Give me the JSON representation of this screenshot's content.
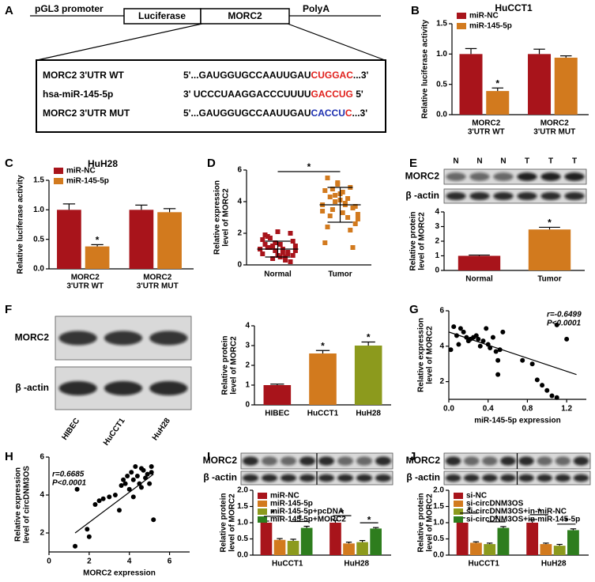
{
  "diagram": {
    "label": "A",
    "construct": [
      "pGL3 promoter",
      "Luciferase",
      "MORC2",
      "PolyA"
    ],
    "rows": [
      {
        "name": "MORC2 3'UTR WT",
        "segments": [
          {
            "text": "5'...GAUGGUGCCAAUUGAU",
            "color": "#000000"
          },
          {
            "text": "CUGGAC",
            "color": "#e0201c"
          },
          {
            "text": "...3'",
            "color": "#000000"
          }
        ]
      },
      {
        "name": "hsa-miR-145-5p",
        "segments": [
          {
            "text": "3' UCCCUAAGGACCCUUUU",
            "color": "#000000"
          },
          {
            "text": "GACCUG",
            "color": "#e0201c"
          },
          {
            "text": " 5'",
            "color": "#000000"
          }
        ]
      },
      {
        "name": "MORC2 3'UTR MUT",
        "segments": [
          {
            "text": "5'...GAUGGUGCCAAUUGAU",
            "color": "#000000"
          },
          {
            "text": "CACCU",
            "color": "#1c2fb0"
          },
          {
            "text": "C",
            "color": "#e0201c"
          },
          {
            "text": "...3'",
            "color": "#000000"
          }
        ]
      }
    ]
  },
  "blots": [
    {
      "label": "E",
      "rows": [
        "MORC2",
        "β -actin"
      ],
      "lanes": [
        "N",
        "N",
        "N",
        "T",
        "T",
        "T"
      ]
    },
    {
      "label": "F",
      "rows": [
        "MORC2",
        "β -actin"
      ],
      "lanes": [
        "HIBEC",
        "HuCCT1",
        "HuH28"
      ]
    },
    {
      "label": "I",
      "rows": [
        "MORC2",
        "β -actin"
      ]
    },
    {
      "label": "J",
      "rows": [
        "MORC2",
        "β -actin"
      ]
    }
  ],
  "chart_data": [
    {
      "type": "bar",
      "label": "B",
      "title": "HuCCT1",
      "ylabel": "Relative luciferase activity",
      "categories": [
        "MORC2 3'UTR WT",
        "MORC2 3'UTR MUT"
      ],
      "series": [
        {
          "name": "miR-NC",
          "color": "#a8141b",
          "values": [
            1.0,
            1.0
          ],
          "errors": [
            0.09,
            0.08
          ]
        },
        {
          "name": "miR-145-5p",
          "color": "#d27a1e",
          "values": [
            0.39,
            0.94
          ],
          "errors": [
            0.05,
            0.03
          ]
        }
      ],
      "ylim": [
        0,
        1.5
      ],
      "yticks": [
        {
          "value": 0,
          "label": "0.0"
        },
        0.5,
        {
          "value": 1,
          "label": "1.0"
        },
        1.5
      ],
      "annotations": [
        {
          "text": "*",
          "category": "MORC2 3'UTR WT",
          "series": "miR-145-5p"
        }
      ]
    },
    {
      "type": "bar",
      "label": "C",
      "title": "HuH28",
      "ylabel": "Relative luciferase activity",
      "categories": [
        "MORC2 3'UTR WT",
        "MORC2 3'UTR MUT"
      ],
      "series": [
        {
          "name": "miR-NC",
          "color": "#a8141b",
          "values": [
            1.0,
            1.0
          ],
          "errors": [
            0.1,
            0.08
          ]
        },
        {
          "name": "miR-145-5p",
          "color": "#d27a1e",
          "values": [
            0.38,
            0.96
          ],
          "errors": [
            0.03,
            0.06
          ]
        }
      ],
      "ylim": [
        0,
        1.5
      ],
      "yticks": [
        {
          "value": 0,
          "label": "0.0"
        },
        0.5,
        {
          "value": 1,
          "label": "1.0"
        },
        1.5
      ],
      "annotations": [
        {
          "text": "*",
          "category": "MORC2 3'UTR WT",
          "series": "miR-145-5p"
        }
      ]
    },
    {
      "type": "dot",
      "label": "D",
      "ylabel": "Relative expression level of MORC2",
      "categories": [
        "Normal",
        "Tumor"
      ],
      "colors": [
        "#a8141b",
        "#d27a1e"
      ],
      "groups": [
        [
          1.0,
          0.6,
          1.2,
          0.9,
          1.5,
          0.4,
          2.0,
          1.1,
          0.7,
          1.8,
          0.3,
          1.3,
          0.8,
          1.6,
          0.5,
          1.0,
          2.1,
          0.9,
          1.4,
          0.6,
          1.2,
          0.2,
          1.7,
          0.8,
          1.1,
          0.5,
          1.9,
          1.0,
          0.7,
          1.3
        ],
        [
          3.8,
          4.5,
          3.2,
          5.1,
          2.6,
          4.0,
          3.6,
          4.8,
          2.2,
          4.3,
          3.0,
          5.5,
          3.9,
          1.4,
          4.6,
          3.4,
          4.1,
          2.9,
          5.2,
          3.7,
          4.4,
          1.1,
          3.5,
          4.9,
          3.1,
          4.2,
          2.4,
          3.8,
          4.7,
          3.3
        ]
      ],
      "means": [
        1.0,
        3.8
      ],
      "sds": [
        0.5,
        1.1
      ],
      "ylim": [
        0,
        6
      ],
      "yticks": [
        0,
        2,
        4,
        6
      ],
      "annotations": [
        {
          "text": "*",
          "between": [
            "Normal",
            "Tumor"
          ]
        }
      ]
    },
    {
      "type": "bar",
      "label": "E",
      "ylabel": "Relative protein level of MORC2",
      "categories": [
        "Normal",
        "Tumor"
      ],
      "values": [
        1.0,
        2.8
      ],
      "errors": [
        0.05,
        0.15
      ],
      "colors": [
        "#a8141b",
        "#d27a1e"
      ],
      "ylim": [
        0,
        4
      ],
      "yticks": [
        0,
        1,
        2,
        3,
        4
      ],
      "annotations": [
        {
          "text": "*",
          "category": "Tumor"
        }
      ]
    },
    {
      "type": "bar",
      "label": "F",
      "ylabel": "Relative protein level of MORC2",
      "categories": [
        "HIBEC",
        "HuCCT1",
        "HuH28"
      ],
      "values": [
        1.0,
        2.6,
        3.0
      ],
      "errors": [
        0.05,
        0.15,
        0.18
      ],
      "colors": [
        "#a8141b",
        "#d27a1e",
        "#8c9a1d"
      ],
      "ylim": [
        0,
        4
      ],
      "yticks": [
        0,
        1,
        2,
        3,
        4
      ],
      "annotations": [
        {
          "text": "*",
          "category": "HuCCT1"
        },
        {
          "text": "*",
          "category": "HuH28"
        }
      ]
    },
    {
      "type": "scatter",
      "label": "G",
      "xlabel": "miR-145-5p expression",
      "ylabel": "Relative expression level of MORC2",
      "annotation_lines": [
        "r=-0.6499",
        "P<0.0001"
      ],
      "x": [
        0.02,
        0.05,
        0.08,
        0.1,
        0.12,
        0.15,
        0.18,
        0.2,
        0.22,
        0.25,
        0.28,
        0.3,
        0.32,
        0.35,
        0.38,
        0.4,
        0.42,
        0.45,
        0.48,
        0.5,
        0.5,
        0.52,
        0.55,
        0.75,
        0.85,
        0.9,
        0.95,
        1.0,
        1.05,
        1.1,
        1.2,
        1.1
      ],
      "y": [
        3.8,
        5.1,
        4.6,
        4.1,
        5.0,
        4.8,
        4.5,
        4.3,
        4.4,
        4.5,
        4.6,
        4.4,
        4.0,
        4.3,
        5.0,
        4.1,
        3.9,
        4.5,
        3.7,
        3.2,
        2.4,
        3.8,
        4.8,
        3.2,
        3.0,
        2.1,
        1.8,
        1.5,
        1.2,
        5.2,
        4.4,
        1.1
      ],
      "fit_line": {
        "x": [
          0,
          1.3
        ],
        "y": [
          4.8,
          2.4
        ],
        "color": "#e0201c"
      },
      "xlim": [
        0,
        1.4
      ],
      "xticks": [
        {
          "value": 0,
          "label": "0.0"
        },
        0.4,
        0.8,
        1.2
      ],
      "ylim": [
        1,
        6
      ],
      "yticks": [
        2,
        4,
        6
      ]
    },
    {
      "type": "scatter",
      "label": "H",
      "xlabel": "MORC2 expression",
      "ylabel": "Relative expression level of circDNM3OS",
      "annotation_lines": [
        "r=0.6685",
        "P<0.0001"
      ],
      "x": [
        1.3,
        1.4,
        1.9,
        2.0,
        2.3,
        2.5,
        2.7,
        3.0,
        3.3,
        3.5,
        3.7,
        3.8,
        3.9,
        4.0,
        4.1,
        4.2,
        4.3,
        4.4,
        4.5,
        4.6,
        4.7,
        4.8,
        4.9,
        5.0,
        5.1,
        5.2,
        4.2,
        4.6,
        3.6,
        5.1
      ],
      "y": [
        1.3,
        4.3,
        2.2,
        1.8,
        3.5,
        3.7,
        3.8,
        3.9,
        4.0,
        3.2,
        4.8,
        4.6,
        5.0,
        4.3,
        5.2,
        4.8,
        5.5,
        5.0,
        4.6,
        5.4,
        5.3,
        4.9,
        5.1,
        4.6,
        5.2,
        2.7,
        3.9,
        4.4,
        4.5,
        5.5
      ],
      "fit_line": {
        "x": [
          1.3,
          5.2
        ],
        "y": [
          2.0,
          5.1
        ],
        "color": "#e0201c"
      },
      "xlim": [
        0,
        7
      ],
      "xticks": [
        0,
        2,
        4,
        6
      ],
      "ylim": [
        1,
        6
      ],
      "yticks": [
        2,
        4,
        6
      ]
    },
    {
      "type": "bar",
      "label": "I",
      "ylabel": "Relative protein level of MORC2",
      "categories": [
        "HuCCT1",
        "HuH28"
      ],
      "series": [
        {
          "name": "miR-NC",
          "color": "#a8141b",
          "values": [
            1.0,
            1.0
          ],
          "errors": [
            0.05,
            0.07
          ]
        },
        {
          "name": "miR-145-5p",
          "color": "#d27a1e",
          "values": [
            0.47,
            0.36
          ],
          "errors": [
            0.04,
            0.04
          ]
        },
        {
          "name": "miR-145-5p+pcDNA",
          "color": "#8c9a1d",
          "values": [
            0.44,
            0.4
          ],
          "errors": [
            0.05,
            0.05
          ]
        },
        {
          "name": "miR-145-5p+MORC2",
          "color": "#2e7d1e",
          "values": [
            0.84,
            0.82
          ],
          "errors": [
            0.05,
            0.03
          ]
        }
      ],
      "ylim": [
        0,
        2
      ],
      "yticks": [
        {
          "value": 0,
          "label": "0.0"
        },
        0.5,
        {
          "value": 1,
          "label": "1.0"
        },
        1.5,
        {
          "value": 2,
          "label": "2.0"
        }
      ],
      "annotations": [
        {
          "text": "*",
          "category": "HuCCT1",
          "between": [
            "miR-NC",
            "miR-145-5p"
          ]
        },
        {
          "text": "*",
          "category": "HuCCT1",
          "between": [
            "miR-145-5p+pcDNA",
            "miR-145-5p+MORC2"
          ]
        },
        {
          "text": "*",
          "category": "HuH28",
          "between": [
            "miR-NC",
            "miR-145-5p"
          ]
        },
        {
          "text": "*",
          "category": "HuH28",
          "between": [
            "miR-145-5p+pcDNA",
            "miR-145-5p+MORC2"
          ]
        }
      ]
    },
    {
      "type": "bar",
      "label": "J",
      "ylabel": "Relative protein level of MORC2",
      "categories": [
        "HuCCT1",
        "HuH28"
      ],
      "series": [
        {
          "name": "si-NC",
          "color": "#a8141b",
          "values": [
            1.0,
            1.0
          ],
          "errors": [
            0.15,
            0.1
          ]
        },
        {
          "name": "si-circDNM3OS",
          "color": "#d27a1e",
          "values": [
            0.38,
            0.34
          ],
          "errors": [
            0.03,
            0.03
          ]
        },
        {
          "name": "si-circDNM3OS+in-miR-NC",
          "color": "#8c9a1d",
          "values": [
            0.34,
            0.29
          ],
          "errors": [
            0.03,
            0.04
          ]
        },
        {
          "name": "si-circDNM3OS+in-miR-145-5p",
          "color": "#2e7d1e",
          "values": [
            0.84,
            0.77
          ],
          "errors": [
            0.04,
            0.04
          ]
        }
      ],
      "ylim": [
        0,
        2
      ],
      "yticks": [
        {
          "value": 0,
          "label": "0.0"
        },
        0.5,
        {
          "value": 1,
          "label": "1.0"
        },
        1.5,
        {
          "value": 2,
          "label": "2.0"
        }
      ],
      "annotations": [
        {
          "text": "*",
          "category": "HuCCT1",
          "between": [
            "si-NC",
            "si-circDNM3OS"
          ]
        },
        {
          "text": "*",
          "category": "HuCCT1",
          "between": [
            "si-circDNM3OS+in-miR-NC",
            "si-circDNM3OS+in-miR-145-5p"
          ]
        },
        {
          "text": "*",
          "category": "HuH28",
          "between": [
            "si-NC",
            "si-circDNM3OS"
          ]
        },
        {
          "text": "*",
          "category": "HuH28",
          "between": [
            "si-circDNM3OS+in-miR-NC",
            "si-circDNM3OS+in-miR-145-5p"
          ]
        }
      ]
    }
  ]
}
